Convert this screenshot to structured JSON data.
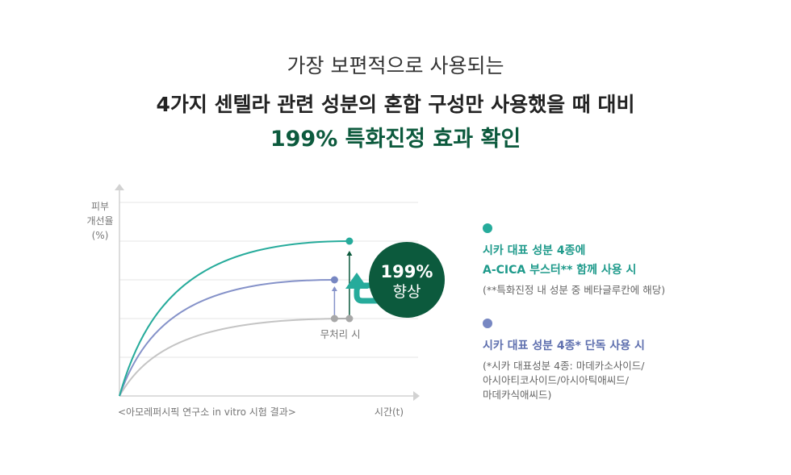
{
  "headline": {
    "line1": "가장 보편적으로 사용되는",
    "line2": "4가지 센텔라 관련 성분의 혼합 구성만 사용했을 때 대비",
    "line3": "199% 특화진정 효과 확인"
  },
  "chart_data": {
    "type": "line",
    "ylabel": [
      "피부",
      "개선율",
      "(%)"
    ],
    "xlabel": "시간(t)",
    "source": "<아모레퍼시픽 연구소 in vitro 시험 결과>",
    "xlim": [
      0,
      10
    ],
    "ylim": [
      0,
      100
    ],
    "grid": true,
    "series": [
      {
        "key": "full",
        "color": "#26ab9b",
        "end_x": 7.7,
        "end_y": 80
      },
      {
        "key": "cica4",
        "color": "#8592c9",
        "end_x": 7.2,
        "end_y": 60
      },
      {
        "key": "none",
        "color": "#c4c4c4",
        "end_x": 7.7,
        "end_y": 40,
        "label": "무처리 시"
      }
    ],
    "annotation": {
      "value": "199%",
      "text": "향상",
      "color": "#0c5a3d",
      "arrow_color": "#26ab9b"
    }
  },
  "legend": [
    {
      "color": "#26ab9b",
      "title_lines": [
        "시카 대표 성분 4종에",
        "A-CICA 부스터** 함께 사용 시"
      ],
      "note_lines": [
        "(**특화진정 내 성분 중 베타글루칸에 해당)"
      ]
    },
    {
      "color": "#7787c2",
      "title_lines": [
        "시카 대표 성분 4종* 단독 사용 시"
      ],
      "note_lines": [
        "(*시카 대표성분 4종: 마데카소사이드/",
        "아시아티코사이드/아시아틱애씨드/",
        "마데카식애씨드)"
      ]
    }
  ]
}
